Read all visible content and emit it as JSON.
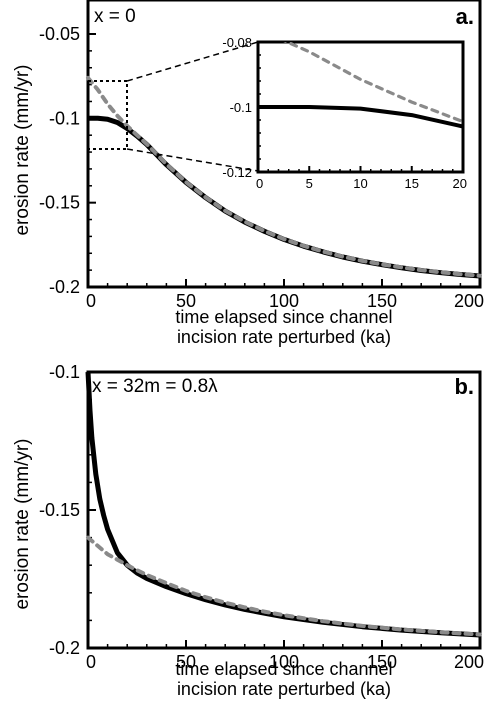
{
  "chart_data": [
    {
      "type": "line",
      "panel_letter": "a.",
      "title": "x = 0",
      "xlabel": [
        "time elapsed since channel",
        "incision rate perturbed (ka)"
      ],
      "ylabel": "erosion rate (mm/yr)",
      "xlim": [
        0,
        200
      ],
      "ylim": [
        -0.2,
        -0.05
      ],
      "xticks": [
        0,
        50,
        100,
        150,
        200
      ],
      "xtick_labels": [
        "0",
        "50",
        "100",
        "150",
        "200"
      ],
      "yticks": [
        -0.05,
        -0.1,
        -0.15,
        -0.2
      ],
      "ytick_labels": [
        "-0.05",
        "-0.1",
        "-0.15",
        "-0.2"
      ],
      "series": [
        {
          "style": "solid",
          "color": "#000000",
          "x": [
            0,
            5,
            10,
            15,
            20,
            25,
            30,
            40,
            50,
            60,
            70,
            80,
            90,
            100,
            110,
            120,
            130,
            140,
            150,
            160,
            170,
            180,
            190,
            200
          ],
          "y": [
            -0.1,
            -0.1,
            -0.1005,
            -0.1025,
            -0.106,
            -0.1105,
            -0.1155,
            -0.1275,
            -0.138,
            -0.147,
            -0.155,
            -0.1615,
            -0.167,
            -0.1718,
            -0.1758,
            -0.1792,
            -0.1822,
            -0.1847,
            -0.1868,
            -0.1886,
            -0.1902,
            -0.1915,
            -0.1926,
            -0.1935
          ]
        },
        {
          "style": "dashed",
          "color": "#8a8a8a",
          "x": [
            0,
            5,
            10,
            15,
            20,
            25,
            30,
            40,
            50,
            60,
            70,
            80,
            90,
            100,
            110,
            120,
            130,
            140,
            150,
            160,
            170,
            180,
            190,
            200
          ],
          "y": [
            -0.076,
            -0.083,
            -0.0915,
            -0.0985,
            -0.1045,
            -0.11,
            -0.1153,
            -0.1272,
            -0.1378,
            -0.1468,
            -0.1548,
            -0.1613,
            -0.1668,
            -0.1716,
            -0.1756,
            -0.179,
            -0.182,
            -0.1845,
            -0.1866,
            -0.1884,
            -0.19,
            -0.1913,
            -0.1924,
            -0.1933
          ]
        }
      ],
      "inset": {
        "xlim": [
          0,
          20
        ],
        "ylim": [
          -0.12,
          -0.08
        ],
        "xticks": [
          0,
          5,
          10,
          15,
          20
        ],
        "xtick_labels": [
          "0",
          "5",
          "10",
          "15",
          "20"
        ],
        "yticks": [
          -0.08,
          -0.1,
          -0.12
        ],
        "ytick_labels": [
          "-0.08",
          "-0.1",
          "-0.12"
        ]
      }
    },
    {
      "type": "line",
      "panel_letter": "b.",
      "title": "x = 32m = 0.8λ",
      "xlabel": [
        "time elapsed since channel",
        "incision rate perturbed (ka)"
      ],
      "ylabel": "erosion rate (mm/yr)",
      "xlim": [
        0,
        200
      ],
      "ylim": [
        -0.2,
        -0.1
      ],
      "xticks": [
        0,
        50,
        100,
        150,
        200
      ],
      "xtick_labels": [
        "0",
        "50",
        "100",
        "150",
        "200"
      ],
      "yticks": [
        -0.1,
        -0.15,
        -0.2
      ],
      "ytick_labels": [
        "-0.1",
        "-0.15",
        "-0.2"
      ],
      "series": [
        {
          "style": "solid",
          "color": "#000000",
          "x": [
            0,
            1,
            2,
            4,
            6,
            8,
            10,
            15,
            20,
            25,
            30,
            40,
            50,
            60,
            70,
            80,
            90,
            100,
            120,
            140,
            160,
            180,
            200
          ],
          "y": [
            -0.1,
            -0.114,
            -0.124,
            -0.137,
            -0.146,
            -0.152,
            -0.157,
            -0.1655,
            -0.17,
            -0.1728,
            -0.1748,
            -0.1778,
            -0.1803,
            -0.1825,
            -0.1844,
            -0.186,
            -0.1874,
            -0.1887,
            -0.1907,
            -0.1923,
            -0.1935,
            -0.1945,
            -0.1953
          ]
        },
        {
          "style": "dashed",
          "color": "#8a8a8a",
          "x": [
            0,
            5,
            10,
            15,
            20,
            25,
            30,
            40,
            50,
            60,
            70,
            80,
            90,
            100,
            120,
            140,
            160,
            180,
            200
          ],
          "y": [
            -0.16,
            -0.163,
            -0.166,
            -0.168,
            -0.17,
            -0.1718,
            -0.1735,
            -0.1765,
            -0.1793,
            -0.1816,
            -0.1836,
            -0.1853,
            -0.1868,
            -0.1881,
            -0.1903,
            -0.192,
            -0.1933,
            -0.1943,
            -0.1951
          ]
        }
      ]
    }
  ]
}
